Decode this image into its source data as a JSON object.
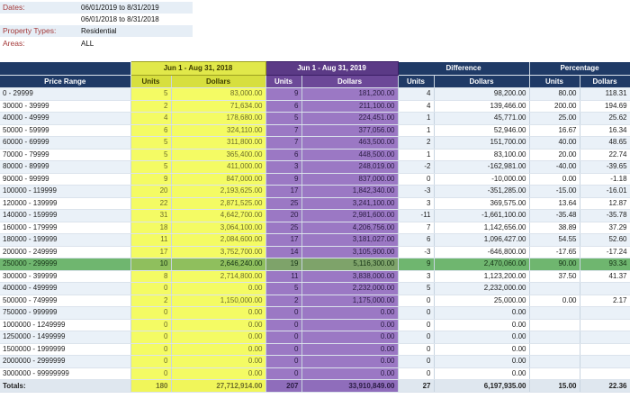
{
  "filters": [
    {
      "label": "Dates:",
      "values": [
        "06/01/2019 to 8/31/2019",
        "06/01/2018 to 8/31/2018"
      ]
    },
    {
      "label": "Property Types:",
      "values": [
        "Residential"
      ]
    },
    {
      "label": "Areas:",
      "values": [
        "ALL"
      ]
    }
  ],
  "table": {
    "group_headers": [
      "Jun 1 - Aug 31, 2018",
      "Jun 1 - Aug 31, 2019",
      "Difference",
      "Percentage"
    ],
    "column_headers": [
      "Price Range",
      "Units",
      "Dollars",
      "Units",
      "Dollars",
      "Units",
      "Dollars",
      "Units",
      "Dollars"
    ],
    "rows": [
      [
        "0 - 29999",
        "5",
        "83,000.00",
        "9",
        "181,200.00",
        "4",
        "98,200.00",
        "80.00",
        "118.31"
      ],
      [
        "30000 - 39999",
        "2",
        "71,634.00",
        "6",
        "211,100.00",
        "4",
        "139,466.00",
        "200.00",
        "194.69"
      ],
      [
        "40000 - 49999",
        "4",
        "178,680.00",
        "5",
        "224,451.00",
        "1",
        "45,771.00",
        "25.00",
        "25.62"
      ],
      [
        "50000 - 59999",
        "6",
        "324,110.00",
        "7",
        "377,056.00",
        "1",
        "52,946.00",
        "16.67",
        "16.34"
      ],
      [
        "60000 - 69999",
        "5",
        "311,800.00",
        "7",
        "463,500.00",
        "2",
        "151,700.00",
        "40.00",
        "48.65"
      ],
      [
        "70000 - 79999",
        "5",
        "365,400.00",
        "6",
        "448,500.00",
        "1",
        "83,100.00",
        "20.00",
        "22.74"
      ],
      [
        "80000 - 89999",
        "5",
        "411,000.00",
        "3",
        "248,019.00",
        "-2",
        "-162,981.00",
        "-40.00",
        "-39.65"
      ],
      [
        "90000 - 99999",
        "9",
        "847,000.00",
        "9",
        "837,000.00",
        "0",
        "-10,000.00",
        "0.00",
        "-1.18"
      ],
      [
        "100000 - 119999",
        "20",
        "2,193,625.00",
        "17",
        "1,842,340.00",
        "-3",
        "-351,285.00",
        "-15.00",
        "-16.01"
      ],
      [
        "120000 - 139999",
        "22",
        "2,871,525.00",
        "25",
        "3,241,100.00",
        "3",
        "369,575.00",
        "13.64",
        "12.87"
      ],
      [
        "140000 - 159999",
        "31",
        "4,642,700.00",
        "20",
        "2,981,600.00",
        "-11",
        "-1,661,100.00",
        "-35.48",
        "-35.78"
      ],
      [
        "160000 - 179999",
        "18",
        "3,064,100.00",
        "25",
        "4,206,756.00",
        "7",
        "1,142,656.00",
        "38.89",
        "37.29"
      ],
      [
        "180000 - 199999",
        "11",
        "2,084,600.00",
        "17",
        "3,181,027.00",
        "6",
        "1,096,427.00",
        "54.55",
        "52.60"
      ],
      [
        "200000 - 249999",
        "17",
        "3,752,700.00",
        "14",
        "3,105,900.00",
        "-3",
        "-646,800.00",
        "-17.65",
        "-17.24"
      ],
      [
        "250000 - 299999",
        "10",
        "2,646,240.00",
        "19",
        "5,116,300.00",
        "9",
        "2,470,060.00",
        "90.00",
        "93.34"
      ],
      [
        "300000 - 399999",
        "8",
        "2,714,800.00",
        "11",
        "3,838,000.00",
        "3",
        "1,123,200.00",
        "37.50",
        "41.37"
      ],
      [
        "400000 - 499999",
        "0",
        "0.00",
        "5",
        "2,232,000.00",
        "5",
        "2,232,000.00",
        "",
        ""
      ],
      [
        "500000 - 749999",
        "2",
        "1,150,000.00",
        "2",
        "1,175,000.00",
        "0",
        "25,000.00",
        "0.00",
        "2.17"
      ],
      [
        "750000 - 999999",
        "0",
        "0.00",
        "0",
        "0.00",
        "0",
        "0.00",
        "",
        ""
      ],
      [
        "1000000 - 1249999",
        "0",
        "0.00",
        "0",
        "0.00",
        "0",
        "0.00",
        "",
        ""
      ],
      [
        "1250000 - 1499999",
        "0",
        "0.00",
        "0",
        "0.00",
        "0",
        "0.00",
        "",
        ""
      ],
      [
        "1500000 - 1999999",
        "0",
        "0.00",
        "0",
        "0.00",
        "0",
        "0.00",
        "",
        ""
      ],
      [
        "2000000 - 2999999",
        "0",
        "0.00",
        "0",
        "0.00",
        "0",
        "0.00",
        "",
        ""
      ],
      [
        "3000000 - 99999999",
        "0",
        "0.00",
        "0",
        "0.00",
        "0",
        "0.00",
        "",
        ""
      ]
    ],
    "highlighted_row_label": "250000 - 299999",
    "totals": [
      "Totals:",
      "180",
      "27,712,914.00",
      "207",
      "33,910,849.00",
      "27",
      "6,197,935.00",
      "15.00",
      "22.36"
    ]
  },
  "colors": {
    "header_navy": "#1f3a66",
    "year2018_yellow": "#f4fb64",
    "year2019_purple": "#9b78c4",
    "highlight_green": "#6fb66f",
    "filter_label_red": "#a43a3a"
  }
}
